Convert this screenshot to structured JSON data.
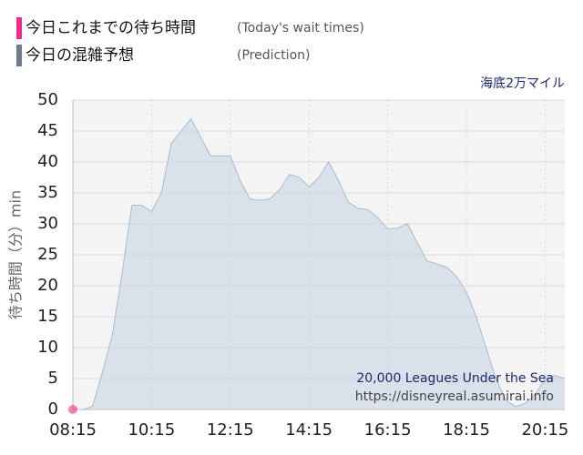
{
  "chart_data": {
    "type": "area",
    "top_right_label": "海底2万マイル",
    "y_label": "待ち時間（分）min",
    "watermark": [
      "20,000 Leagues Under the Sea",
      "https://disneyreal.asumirai.info"
    ],
    "xlim": [
      "08:15",
      "20:45"
    ],
    "xticks": [
      "08:15",
      "10:15",
      "12:15",
      "14:15",
      "16:15",
      "18:15",
      "20:15"
    ],
    "ylim": [
      0,
      50
    ],
    "yticks": [
      0,
      5,
      10,
      15,
      20,
      25,
      30,
      35,
      40,
      45,
      50
    ],
    "grid": true,
    "series": [
      {
        "name": "今日これまでの待ち時間",
        "note": "(Today's wait times)",
        "color": "#f02c8c",
        "kind": "points",
        "x": [
          "08:15"
        ],
        "values": [
          0
        ]
      },
      {
        "name": "今日の混雑予想",
        "note": "(Prediction)",
        "color": "#6f7a8c",
        "kind": "area",
        "x": [
          "08:15",
          "08:30",
          "08:45",
          "09:00",
          "09:15",
          "09:30",
          "09:45",
          "10:00",
          "10:15",
          "10:30",
          "10:45",
          "11:00",
          "11:15",
          "11:30",
          "11:45",
          "12:00",
          "12:15",
          "12:30",
          "12:45",
          "13:00",
          "13:15",
          "13:30",
          "13:45",
          "14:00",
          "14:15",
          "14:30",
          "14:45",
          "15:00",
          "15:15",
          "15:30",
          "15:45",
          "16:00",
          "16:15",
          "16:30",
          "16:45",
          "17:00",
          "17:15",
          "17:30",
          "17:45",
          "18:00",
          "18:15",
          "18:30",
          "18:45",
          "19:00",
          "19:15",
          "19:30",
          "19:45",
          "20:00",
          "20:15",
          "20:30",
          "20:45"
        ],
        "values": [
          0,
          0,
          0.5,
          6,
          12,
          22,
          33,
          33,
          32,
          35,
          43,
          45,
          47,
          44,
          41,
          41,
          41,
          37,
          34,
          33.8,
          34,
          35.5,
          38,
          37.5,
          36,
          37.5,
          40,
          37,
          33.5,
          32.5,
          32.3,
          31,
          29.2,
          29.3,
          30,
          27,
          24,
          23.5,
          23,
          21.5,
          19,
          15,
          10,
          5,
          1.5,
          0.5,
          1,
          2.5,
          5,
          5.5,
          5
        ]
      }
    ]
  }
}
